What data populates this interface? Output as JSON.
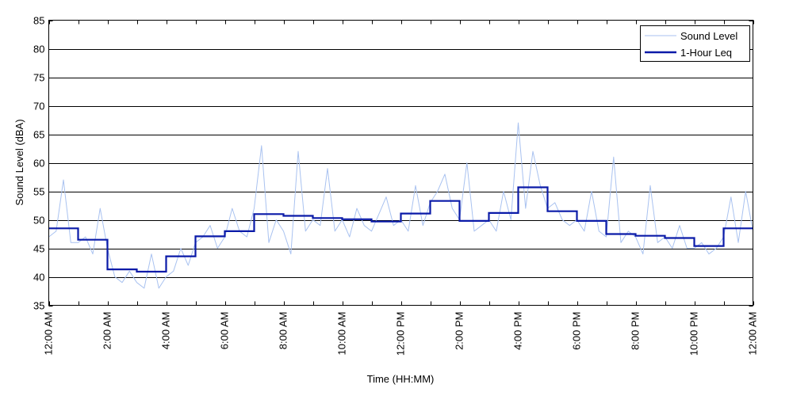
{
  "chart_data": {
    "type": "line",
    "title": "",
    "xlabel": "Time (HH:MM)",
    "ylabel": "Sound Level (dBA)",
    "ylim": [
      35,
      85
    ],
    "yticks": [
      35,
      40,
      45,
      50,
      55,
      60,
      65,
      70,
      75,
      80,
      85
    ],
    "xlim_hours": [
      0,
      24
    ],
    "xtick_labels": [
      "12:00 AM",
      "2:00 AM",
      "4:00 AM",
      "6:00 AM",
      "8:00 AM",
      "10:00 AM",
      "12:00 PM",
      "2:00 PM",
      "4:00 PM",
      "6:00 PM",
      "8:00 PM",
      "10:00 PM",
      "12:00 AM"
    ],
    "grid": "horizontal",
    "legend_position": "top-right",
    "colors": {
      "sound_level": "#a9c2f0",
      "leq": "#0a1aa8"
    },
    "series": [
      {
        "name": "Sound Level",
        "style": "thin light line, per-minute values",
        "x_hours": [
          0.0,
          0.25,
          0.5,
          0.75,
          1.0,
          1.25,
          1.5,
          1.75,
          2.0,
          2.25,
          2.5,
          2.75,
          3.0,
          3.25,
          3.5,
          3.75,
          4.0,
          4.25,
          4.5,
          4.75,
          5.0,
          5.25,
          5.5,
          5.75,
          6.0,
          6.25,
          6.5,
          6.75,
          7.0,
          7.25,
          7.5,
          7.75,
          8.0,
          8.25,
          8.5,
          8.75,
          9.0,
          9.25,
          9.5,
          9.75,
          10.0,
          10.25,
          10.5,
          10.75,
          11.0,
          11.25,
          11.5,
          11.75,
          12.0,
          12.25,
          12.5,
          12.75,
          13.0,
          13.25,
          13.5,
          13.75,
          14.0,
          14.25,
          14.5,
          14.75,
          15.0,
          15.25,
          15.5,
          15.75,
          16.0,
          16.25,
          16.5,
          16.75,
          17.0,
          17.25,
          17.5,
          17.75,
          18.0,
          18.25,
          18.5,
          18.75,
          19.0,
          19.25,
          19.5,
          19.75,
          20.0,
          20.25,
          20.5,
          20.75,
          21.0,
          21.25,
          21.5,
          21.75,
          22.0,
          22.25,
          22.5,
          22.75,
          23.0,
          23.25,
          23.5,
          23.75,
          24.0
        ],
        "y": [
          47,
          48,
          57,
          46,
          46,
          47,
          44,
          52,
          45,
          40,
          39,
          41,
          39,
          38,
          44,
          38,
          40,
          41,
          45,
          42,
          46,
          47,
          49,
          45,
          47,
          52,
          48,
          47,
          52,
          63,
          46,
          50,
          48,
          44,
          62,
          48,
          50,
          49,
          59,
          48,
          50,
          47,
          52,
          49,
          48,
          51,
          54,
          49,
          50,
          48,
          56,
          49,
          53,
          55,
          58,
          52,
          50,
          60,
          48,
          49,
          50,
          48,
          55,
          50,
          67,
          52,
          62,
          56,
          52,
          53,
          50,
          49,
          50,
          48,
          55,
          48,
          47,
          61,
          46,
          48,
          47,
          44,
          56,
          46,
          47,
          45,
          49,
          45,
          45,
          46,
          44,
          45,
          47,
          54,
          46,
          55,
          48
        ]
      },
      {
        "name": "1-Hour Leq",
        "style": "thick dark step line",
        "hour_start": [
          0,
          1,
          2,
          3,
          4,
          5,
          6,
          7,
          8,
          9,
          10,
          11,
          12,
          13,
          14,
          15,
          16,
          17,
          18,
          19,
          20,
          21,
          22,
          23
        ],
        "values": [
          48.5,
          46.5,
          41.3,
          40.9,
          43.6,
          47.1,
          48.0,
          51.0,
          50.7,
          50.3,
          50.1,
          49.7,
          51.1,
          53.3,
          49.8,
          51.2,
          55.7,
          51.5,
          49.8,
          47.5,
          47.2,
          46.8,
          45.4,
          48.5
        ]
      }
    ]
  }
}
